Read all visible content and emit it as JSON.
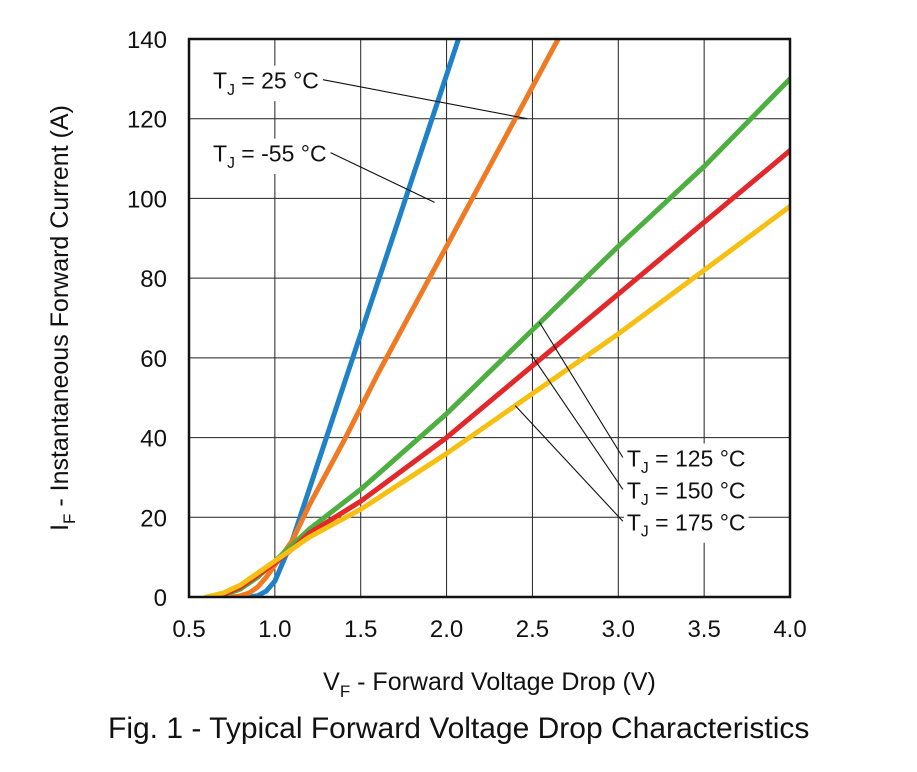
{
  "caption": "Fig. 1 - Typical Forward Voltage Drop Characteristics",
  "chart_data": {
    "type": "line",
    "xlabel": {
      "main": "V",
      "sub": "F",
      "rest": " - Forward Voltage Drop (V)"
    },
    "ylabel": {
      "main": "I",
      "sub": "F",
      "rest": " - Instantaneous Forward Current (A)"
    },
    "xlim": [
      0.5,
      4.0
    ],
    "ylim": [
      0,
      140
    ],
    "x_ticks": [
      "0.5",
      "1.0",
      "1.5",
      "2.0",
      "2.5",
      "3.0",
      "3.5",
      "4.0"
    ],
    "y_ticks": [
      "0",
      "20",
      "40",
      "60",
      "80",
      "100",
      "120",
      "140"
    ],
    "grid": true,
    "series": [
      {
        "name": "-55 °C",
        "label": {
          "main": "T",
          "sub": "J",
          "rest": " = -55 °C"
        },
        "color": "#1f82c9",
        "points": [
          [
            0.85,
            0
          ],
          [
            0.9,
            0.3
          ],
          [
            0.95,
            1.5
          ],
          [
            1.0,
            4
          ],
          [
            1.05,
            9
          ],
          [
            1.1,
            14
          ],
          [
            1.2,
            27
          ],
          [
            1.3,
            40
          ],
          [
            1.4,
            53
          ],
          [
            1.5,
            66
          ],
          [
            1.6,
            79
          ],
          [
            1.7,
            92
          ],
          [
            1.8,
            105
          ],
          [
            1.9,
            118
          ],
          [
            2.0,
            131
          ],
          [
            2.1,
            144
          ]
        ]
      },
      {
        "name": "25 °C",
        "label": {
          "main": "T",
          "sub": "J",
          "rest": " = 25 °C"
        },
        "color": "#ef7a23",
        "points": [
          [
            0.75,
            0
          ],
          [
            0.8,
            0.3
          ],
          [
            0.85,
            1
          ],
          [
            0.9,
            2.5
          ],
          [
            0.95,
            5
          ],
          [
            1.0,
            8
          ],
          [
            1.1,
            14
          ],
          [
            1.2,
            23
          ],
          [
            1.4,
            39
          ],
          [
            1.6,
            56
          ],
          [
            1.8,
            72
          ],
          [
            2.0,
            88
          ],
          [
            2.2,
            104
          ],
          [
            2.4,
            120
          ],
          [
            2.6,
            136
          ],
          [
            2.65,
            140
          ]
        ]
      },
      {
        "name": "125 °C",
        "label": {
          "main": "T",
          "sub": "J",
          "rest": " = 125 °C"
        },
        "color": "#4caf3f",
        "points": [
          [
            0.65,
            0
          ],
          [
            0.7,
            0.5
          ],
          [
            0.8,
            2
          ],
          [
            0.9,
            5
          ],
          [
            1.0,
            9
          ],
          [
            1.1,
            13
          ],
          [
            1.2,
            17
          ],
          [
            1.5,
            27
          ],
          [
            2.0,
            46
          ],
          [
            2.5,
            67
          ],
          [
            3.0,
            88
          ],
          [
            3.5,
            108
          ],
          [
            4.0,
            130
          ]
        ]
      },
      {
        "name": "150 °C",
        "label": {
          "main": "T",
          "sub": "J",
          "rest": " = 150 °C"
        },
        "color": "#e3282b",
        "points": [
          [
            0.62,
            0
          ],
          [
            0.7,
            0.6
          ],
          [
            0.8,
            2.5
          ],
          [
            0.9,
            5.5
          ],
          [
            1.0,
            8.5
          ],
          [
            1.1,
            12
          ],
          [
            1.2,
            16
          ],
          [
            1.5,
            24
          ],
          [
            2.0,
            40
          ],
          [
            2.5,
            58
          ],
          [
            3.0,
            76
          ],
          [
            3.5,
            94
          ],
          [
            4.0,
            112
          ]
        ]
      },
      {
        "name": "175 °C",
        "label": {
          "main": "T",
          "sub": "J",
          "rest": " = 175 °C"
        },
        "color": "#f5c012",
        "points": [
          [
            0.6,
            0
          ],
          [
            0.7,
            1
          ],
          [
            0.8,
            3
          ],
          [
            0.9,
            6
          ],
          [
            1.0,
            9
          ],
          [
            1.1,
            12
          ],
          [
            1.2,
            15
          ],
          [
            1.5,
            22
          ],
          [
            2.0,
            36
          ],
          [
            2.5,
            51
          ],
          [
            3.0,
            66
          ],
          [
            3.5,
            82
          ],
          [
            4.0,
            98
          ]
        ]
      }
    ],
    "annotations": [
      {
        "series": "25 °C",
        "text_pos": [
          0.64,
          129.8
        ],
        "target": [
          2.47,
          120
        ]
      },
      {
        "series": "-55 °C",
        "text_pos": [
          0.64,
          111.5
        ],
        "target": [
          1.93,
          99
        ]
      },
      {
        "series": "125 °C",
        "text_pos": [
          3.05,
          35
        ],
        "target": [
          2.54,
          69
        ]
      },
      {
        "series": "150 °C",
        "text_pos": [
          3.05,
          27
        ],
        "target": [
          2.49,
          61
        ]
      },
      {
        "series": "175 °C",
        "text_pos": [
          3.05,
          19
        ],
        "target": [
          2.4,
          48
        ]
      }
    ]
  }
}
